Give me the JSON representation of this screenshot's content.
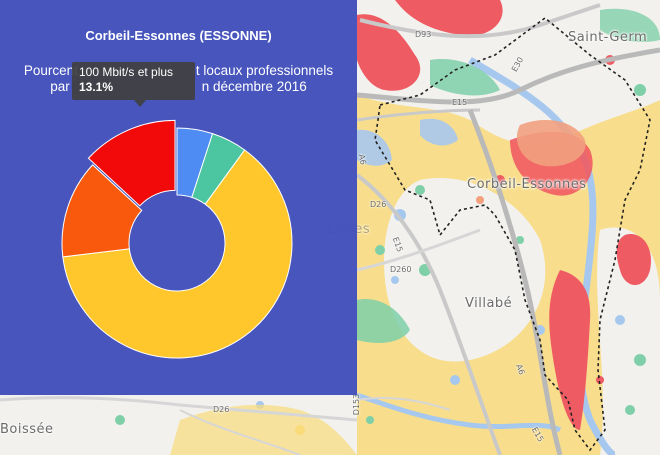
{
  "map": {
    "labels": {
      "saint_germain": "Saint-Germ",
      "corbeil": "Corbeil-Essonnes",
      "villabe": "Villabé",
      "boissee": "Boissée",
      "lisses": "Lisses"
    },
    "roads": {
      "d93": "D93",
      "e30": "E30",
      "e15a": "E15",
      "a6a": "A6",
      "d26a": "D26",
      "e15b": "E15",
      "d260": "D260",
      "a6b": "A6",
      "d26b": "D26",
      "d153": "D153",
      "e15c": "E15"
    },
    "colors": {
      "red": "#ef5b62",
      "yellow": "#f9db7a",
      "green": "#7fd0a8",
      "blue": "#a7c8ee",
      "salmon": "#f2a07e"
    }
  },
  "panel": {
    "title": "Corbeil-Essonnes (ESSONNE)",
    "subtitle_line1_left": "Pourcent",
    "subtitle_line1_right": "t locaux professionnels",
    "subtitle_line2_left": "par",
    "subtitle_line2_right": "n décembre 2016",
    "background": "#3f4eba"
  },
  "tooltip": {
    "label": "100 Mbit/s et plus",
    "value": "13.1%"
  },
  "chart_data": {
    "type": "pie",
    "variant": "donut",
    "slices": [
      {
        "value": 5.0,
        "color": "#4e8cf3",
        "highlighted": false
      },
      {
        "value": 5.0,
        "color": "#4cc6a0",
        "highlighted": false
      },
      {
        "value": 63.0,
        "color": "#ffc72b",
        "highlighted": false
      },
      {
        "value": 13.8,
        "color": "#f9590c",
        "highlighted": false
      },
      {
        "value": 13.1,
        "color": "#f20a0a",
        "highlighted": true
      }
    ]
  }
}
